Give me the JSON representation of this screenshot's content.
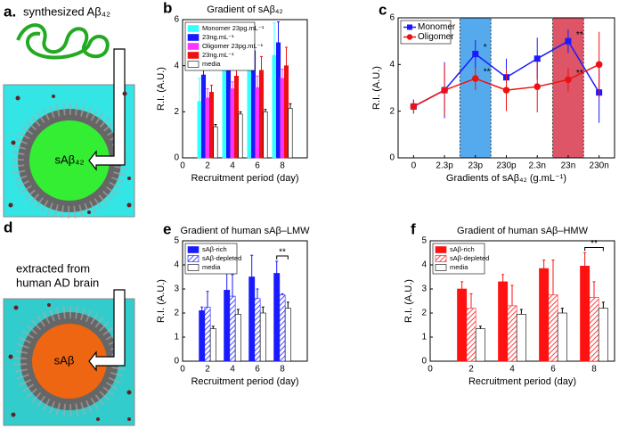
{
  "diagrams": [
    {
      "panel": "a.",
      "caption": "synthesized Aβ₄₂",
      "center_label": "sAβ₄₂"
    },
    {
      "panel": "d",
      "caption": [
        "extracted from",
        "human AD brain"
      ],
      "center_label": "sAβ"
    }
  ],
  "chart_data": [
    {
      "type": "bar",
      "panel": "b",
      "title": "Gradient of sAβ₄₂",
      "x_label": "Recruitment period (day)",
      "y_label": "R.I. (A.U.)",
      "x": [
        2,
        4,
        6,
        8
      ],
      "xlim": [
        0,
        10
      ],
      "xticks": [
        0,
        2,
        4,
        6,
        8
      ],
      "ylim": [
        0,
        6
      ],
      "yticks": [
        0,
        2,
        4,
        6
      ],
      "legend": "upper left",
      "series": [
        {
          "name": "Monomer 23pg.mL⁻¹",
          "color": "#33ffff",
          "values": [
            2.45,
            3.9,
            4.45,
            4.45
          ],
          "errors": [
            1.0,
            0.5,
            0.6,
            1.4
          ]
        },
        {
          "name": "23ng.mL⁻¹",
          "color": "#1a1aff",
          "values": [
            3.6,
            3.85,
            4.65,
            5.0
          ],
          "errors": [
            0.8,
            0.5,
            0.9,
            0.9
          ]
        },
        {
          "name": "Oligomer 23pg.mL⁻¹",
          "color": "#ff33ff",
          "values": [
            2.6,
            3.0,
            3.05,
            3.45
          ],
          "errors": [
            0.4,
            0.3,
            0.5,
            0.4
          ]
        },
        {
          "name": "23ng.mL⁻¹",
          "color": "#ee1111",
          "values": [
            2.85,
            3.55,
            3.8,
            4.0
          ],
          "errors": [
            0.3,
            0.5,
            0.6,
            0.8
          ]
        },
        {
          "name": "media",
          "color": "#ffffff",
          "values": [
            1.35,
            1.9,
            2.0,
            2.15
          ],
          "errors": [
            0.1,
            0.1,
            0.1,
            0.2
          ]
        }
      ]
    },
    {
      "type": "line",
      "panel": "c",
      "x_label": "Gradients of sAβ₄₂ (g.mL⁻¹)",
      "y_label": "R.I. (A.U.)",
      "categories": [
        "0",
        "2.3p",
        "23p",
        "230p",
        "2.3n",
        "23n",
        "230n"
      ],
      "ylim": [
        0,
        6
      ],
      "yticks": [
        0,
        2,
        4,
        6
      ],
      "legend": "upper left",
      "highlight": [
        {
          "index": 2,
          "color": "#55aaee"
        },
        {
          "index": 5,
          "color": "#dd5566"
        }
      ],
      "series": [
        {
          "name": "Monomer",
          "color": "#1a1aff",
          "marker": "square",
          "values": [
            2.2,
            2.9,
            4.45,
            3.45,
            4.25,
            5.0,
            2.8
          ],
          "errors": [
            0.3,
            1.2,
            0.6,
            0.8,
            0.9,
            0.5,
            1.3
          ]
        },
        {
          "name": "Oligomer",
          "color": "#ee1111",
          "marker": "circle",
          "values": [
            2.2,
            2.9,
            3.4,
            2.9,
            3.05,
            3.35,
            4.0
          ],
          "errors": [
            0.3,
            1.1,
            0.5,
            0.9,
            1.1,
            0.5,
            1.4
          ]
        }
      ],
      "annotations": [
        {
          "text": "*",
          "series": 0,
          "index": 2
        },
        {
          "text": "**",
          "series": 1,
          "index": 2
        },
        {
          "text": "**",
          "series": 0,
          "index": 5
        },
        {
          "text": "**",
          "series": 1,
          "index": 5
        }
      ]
    },
    {
      "type": "bar",
      "panel": "e",
      "title": "Gradient of human sAβ–LMW",
      "x_label": "Recruitment period (day)",
      "y_label": "R.I. (A.U.)",
      "x": [
        2,
        4,
        6,
        8
      ],
      "xlim": [
        0,
        10
      ],
      "xticks": [
        0,
        2,
        4,
        6,
        8
      ],
      "ylim": [
        0,
        5
      ],
      "yticks": [
        0,
        1,
        2,
        3,
        4,
        5
      ],
      "legend": "upper left",
      "series": [
        {
          "name": "sAβ-rich",
          "color": "#1a1aff",
          "values": [
            2.1,
            2.95,
            3.5,
            3.65
          ],
          "errors": [
            0.15,
            0.7,
            0.9,
            0.5
          ]
        },
        {
          "name": "sAβ-depleted",
          "color": "#1a1aff",
          "pattern": "hatch",
          "values": [
            2.25,
            2.7,
            2.6,
            2.75
          ],
          "errors": [
            0.65,
            0.9,
            0.4,
            0.05
          ]
        },
        {
          "name": "media",
          "color": "#ffffff",
          "values": [
            1.35,
            1.95,
            2.0,
            2.2
          ],
          "errors": [
            0.1,
            0.2,
            0.25,
            0.25
          ]
        }
      ],
      "annotations": [
        {
          "text": "**",
          "index": 3
        }
      ]
    },
    {
      "type": "bar",
      "panel": "f",
      "title": "Gradient of human sAβ–HMW",
      "x_label": "Recruitment period (day)",
      "y_label": "R.I. (A.U.)",
      "x": [
        2,
        4,
        6,
        8
      ],
      "xlim": [
        0,
        9
      ],
      "xticks": [
        0,
        2,
        4,
        6,
        8
      ],
      "ylim": [
        0,
        5
      ],
      "yticks": [
        0,
        1,
        2,
        3,
        4,
        5
      ],
      "legend": "upper left",
      "series": [
        {
          "name": "sAβ-rich",
          "color": "#ff1111",
          "values": [
            3.0,
            3.3,
            3.85,
            3.95
          ],
          "errors": [
            0.3,
            0.3,
            0.35,
            0.55
          ]
        },
        {
          "name": "sAβ-depleted",
          "color": "#ff1111",
          "pattern": "hatch",
          "values": [
            2.2,
            2.3,
            2.75,
            2.65
          ],
          "errors": [
            0.6,
            0.85,
            1.45,
            0.65
          ]
        },
        {
          "name": "media",
          "color": "#ffffff",
          "values": [
            1.35,
            1.95,
            2.0,
            2.2
          ],
          "errors": [
            0.1,
            0.2,
            0.2,
            0.25
          ]
        }
      ],
      "annotations": [
        {
          "text": "**",
          "index": 3
        }
      ]
    }
  ]
}
